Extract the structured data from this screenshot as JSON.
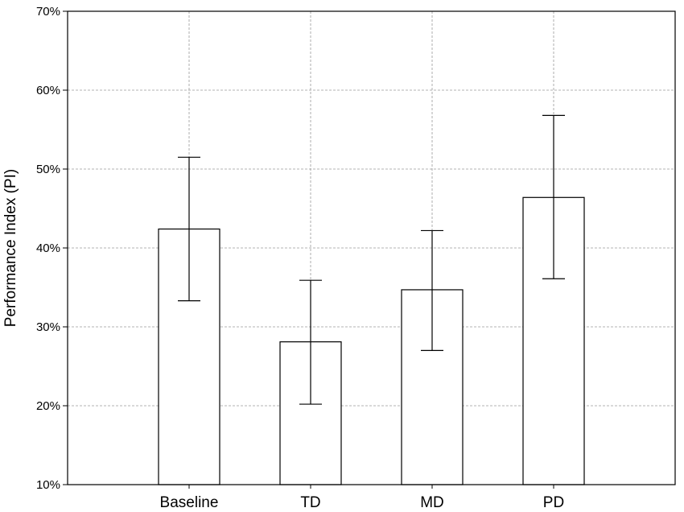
{
  "chart_data": {
    "type": "bar",
    "title": "",
    "xlabel": "",
    "ylabel": "Performance Index (PI)",
    "categories": [
      "Baseline",
      "TD",
      "MD",
      "PD"
    ],
    "values": [
      42.4,
      28.1,
      34.7,
      46.4
    ],
    "error_low": [
      33.3,
      20.2,
      27.0,
      36.1
    ],
    "error_high": [
      51.5,
      35.9,
      42.2,
      56.8
    ],
    "ylim": [
      10,
      70
    ],
    "yticks": [
      10,
      20,
      30,
      40,
      50,
      60,
      70
    ],
    "ytick_labels": [
      "10%",
      "20%",
      "30%",
      "40%",
      "50%",
      "60%",
      "70%"
    ],
    "grid": true,
    "colors": {
      "bar_fill": "#ffffff",
      "bar_stroke": "#000000",
      "grid": "#9a9a9a"
    }
  }
}
